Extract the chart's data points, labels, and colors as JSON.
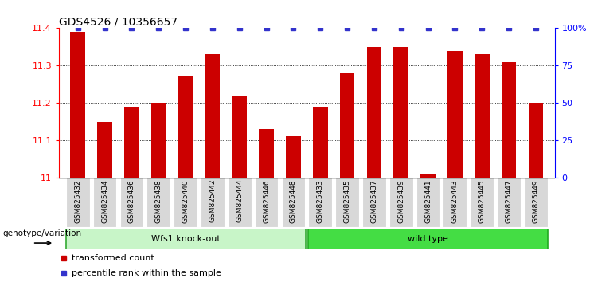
{
  "title": "GDS4526 / 10356657",
  "samples": [
    "GSM825432",
    "GSM825434",
    "GSM825436",
    "GSM825438",
    "GSM825440",
    "GSM825442",
    "GSM825444",
    "GSM825446",
    "GSM825448",
    "GSM825433",
    "GSM825435",
    "GSM825437",
    "GSM825439",
    "GSM825441",
    "GSM825443",
    "GSM825445",
    "GSM825447",
    "GSM825449"
  ],
  "red_values": [
    11.39,
    11.15,
    11.19,
    11.2,
    11.27,
    11.33,
    11.22,
    11.13,
    11.11,
    11.19,
    11.28,
    11.35,
    11.35,
    11.01,
    11.34,
    11.33,
    11.31,
    11.2
  ],
  "blue_percentiles": [
    100,
    100,
    100,
    100,
    100,
    100,
    100,
    100,
    100,
    100,
    100,
    100,
    100,
    100,
    100,
    100,
    100,
    100
  ],
  "ylim_left": [
    11.0,
    11.4
  ],
  "ylim_right": [
    0,
    100
  ],
  "yticks_left": [
    11.0,
    11.1,
    11.2,
    11.3,
    11.4
  ],
  "ytick_labels_left": [
    "11",
    "11.1",
    "11.2",
    "11.3",
    "11.4"
  ],
  "yticks_right": [
    0,
    25,
    50,
    75,
    100
  ],
  "ytick_labels_right": [
    "0",
    "25",
    "50",
    "75",
    "100%"
  ],
  "group1_label": "Wfs1 knock-out",
  "group2_label": "wild type",
  "group1_count": 9,
  "group2_count": 9,
  "bar_color": "#cc0000",
  "blue_color": "#3333cc",
  "group1_bg": "#c8f5c8",
  "group2_bg": "#44dd44",
  "group1_border": "#33aa33",
  "group2_border": "#22aa22",
  "sample_bg": "#d8d8d8",
  "legend_red_label": "transformed count",
  "legend_blue_label": "percentile rank within the sample",
  "genotype_label": "genotype/variation",
  "title_fontsize": 10,
  "tick_fontsize": 8,
  "sample_fontsize": 6.5,
  "group_fontsize": 8,
  "legend_fontsize": 8
}
